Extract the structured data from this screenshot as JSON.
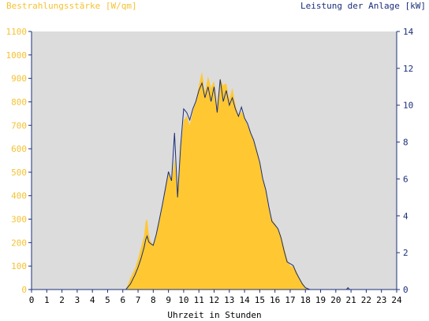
{
  "chart_data": {
    "type": "area",
    "title_left": "Bestrahlungsstärke [W/qm]",
    "title_right": "Leistung der Anlage [kW]",
    "xlabel": "Uhrzeit in Stunden",
    "x_ticks": [
      "0",
      "1",
      "2",
      "3",
      "4",
      "5",
      "6",
      "7",
      "8",
      "9",
      "10",
      "11",
      "12",
      "13",
      "14",
      "15",
      "16",
      "17",
      "18",
      "19",
      "20",
      "21",
      "22",
      "23",
      "24"
    ],
    "xlim": [
      0,
      24
    ],
    "y_left": {
      "ticks": [
        "0",
        "100",
        "200",
        "300",
        "400",
        "500",
        "600",
        "700",
        "800",
        "900",
        "1000",
        "1100"
      ],
      "lim": [
        0,
        1100
      ]
    },
    "y_right": {
      "ticks": [
        "0",
        "2",
        "4",
        "6",
        "8",
        "10",
        "12",
        "14"
      ],
      "lim": [
        0,
        14
      ]
    },
    "grid": false,
    "series": [
      {
        "name": "Bestrahlungsstärke",
        "axis": "left",
        "style": "area",
        "color": "#ffc832",
        "x": [
          0,
          6.2,
          6.5,
          6.8,
          7,
          7.2,
          7.4,
          7.5,
          7.6,
          7.7,
          7.8,
          8,
          8.2,
          8.4,
          8.6,
          8.8,
          9,
          9.2,
          9.4,
          9.6,
          9.8,
          10,
          10.2,
          10.4,
          10.6,
          10.8,
          11,
          11.2,
          11.4,
          11.6,
          11.8,
          12,
          12.2,
          12.4,
          12.6,
          12.8,
          13,
          13.2,
          13.4,
          13.6,
          13.8,
          14,
          14.2,
          14.4,
          14.6,
          14.8,
          15,
          15.2,
          15.4,
          15.6,
          15.8,
          16,
          16.2,
          16.4,
          16.6,
          16.8,
          17,
          17.2,
          17.4,
          17.6,
          17.8,
          18,
          18.3,
          24
        ],
        "values": [
          0,
          0,
          50,
          90,
          130,
          180,
          230,
          290,
          300,
          240,
          210,
          190,
          240,
          300,
          360,
          430,
          500,
          460,
          560,
          420,
          600,
          720,
          740,
          700,
          760,
          800,
          870,
          930,
          840,
          910,
          860,
          890,
          780,
          900,
          870,
          880,
          810,
          860,
          790,
          740,
          760,
          730,
          700,
          670,
          640,
          600,
          550,
          480,
          430,
          350,
          300,
          280,
          260,
          230,
          180,
          130,
          100,
          100,
          80,
          50,
          30,
          10,
          0,
          0
        ]
      },
      {
        "name": "Leistung der Anlage",
        "axis": "right",
        "style": "line",
        "color": "#1a2f7a",
        "x": [
          0,
          6.2,
          6.5,
          6.8,
          7,
          7.2,
          7.4,
          7.5,
          7.6,
          7.7,
          7.8,
          8,
          8.2,
          8.4,
          8.6,
          8.8,
          9,
          9.2,
          9.4,
          9.6,
          9.8,
          10,
          10.2,
          10.4,
          10.6,
          10.8,
          11,
          11.2,
          11.4,
          11.6,
          11.8,
          12,
          12.2,
          12.4,
          12.6,
          12.8,
          13,
          13.2,
          13.4,
          13.6,
          13.8,
          14,
          14.2,
          14.4,
          14.6,
          14.8,
          15,
          15.2,
          15.4,
          15.6,
          15.8,
          16,
          16.2,
          16.4,
          16.6,
          16.8,
          17,
          17.2,
          17.4,
          17.6,
          17.8,
          18,
          18.3,
          20.7,
          20.8,
          20.9,
          24
        ],
        "values": [
          0,
          0,
          0.3,
          0.8,
          1.2,
          1.7,
          2.3,
          2.7,
          2.9,
          2.6,
          2.5,
          2.4,
          3.0,
          3.8,
          4.6,
          5.5,
          6.4,
          5.9,
          8.5,
          5.0,
          7.8,
          9.8,
          9.6,
          9.2,
          9.8,
          10.2,
          10.8,
          11.2,
          10.4,
          11.0,
          10.2,
          11.0,
          9.6,
          11.4,
          10.2,
          10.8,
          10.0,
          10.4,
          9.8,
          9.4,
          9.9,
          9.3,
          9.0,
          8.5,
          8.1,
          7.5,
          6.9,
          6.0,
          5.4,
          4.5,
          3.7,
          3.5,
          3.3,
          2.8,
          2.1,
          1.5,
          1.4,
          1.3,
          0.9,
          0.6,
          0.3,
          0.1,
          0,
          0,
          0.1,
          0,
          0
        ]
      }
    ]
  }
}
